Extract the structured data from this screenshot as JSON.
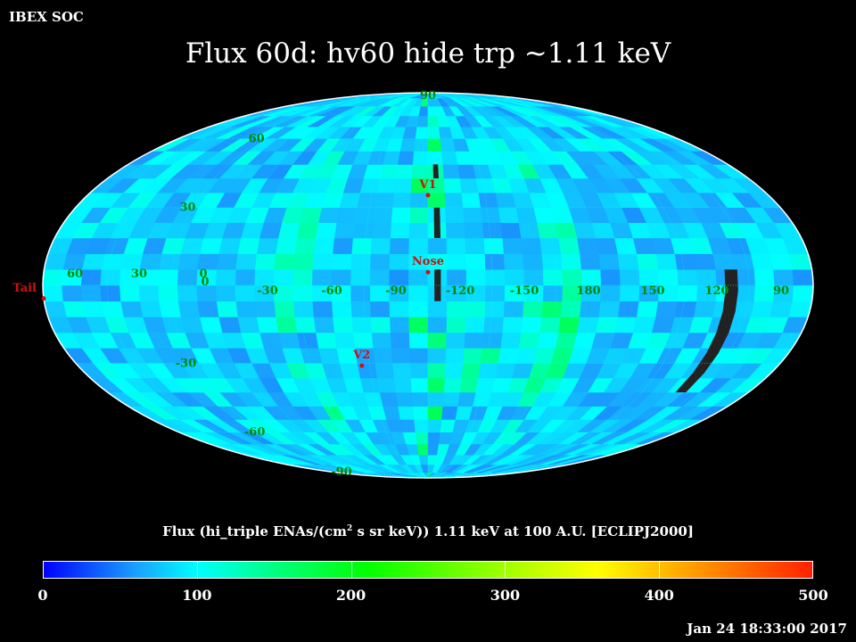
{
  "header": {
    "org": "IBEX SOC",
    "timestamp": "Jan 24 18:33:00 2017"
  },
  "chart_data": {
    "type": "heatmap",
    "projection": "mollweide",
    "title": "Flux   60d: hv60 hide trp ~1.11 keV",
    "colorbar_label_pre": "Flux (hi_triple ENAs/(cm",
    "colorbar_label_sup": "2",
    "colorbar_label_post": " s sr keV))  1.11 keV at 100 A.U. [ECLIPJ2000]",
    "colorbar_ticks": [
      "0",
      "100",
      "200",
      "300",
      "400",
      "500"
    ],
    "colorbar_range": [
      0,
      500
    ],
    "lat_labels": [
      "60",
      "30",
      "0",
      "-30",
      "-60",
      "-90"
    ],
    "lat_values": [
      60,
      30,
      0,
      -30,
      -60,
      -90
    ],
    "north_pole_label": "90",
    "lon_labels": [
      "60",
      "30",
      "0",
      "-30",
      "-60",
      "-90",
      "-120",
      "-150",
      "180",
      "150",
      "120",
      "90"
    ],
    "lon_values": [
      60,
      30,
      0,
      -30,
      -60,
      -90,
      -120,
      -150,
      180,
      150,
      120,
      90
    ],
    "markers": [
      {
        "label": "V1",
        "lon": -105,
        "lat": 35
      },
      {
        "label": "Nose",
        "lon": -105,
        "lat": 5
      },
      {
        "label": "V2",
        "lon": -71,
        "lat": -31
      },
      {
        "label": "Tail",
        "lon": 75,
        "lat": -5
      }
    ],
    "colors": {
      "sky": "#0a70f4",
      "grid": "#00ffff",
      "label": "#008a00",
      "marker": "#d01010",
      "hidden": "#222222"
    }
  }
}
